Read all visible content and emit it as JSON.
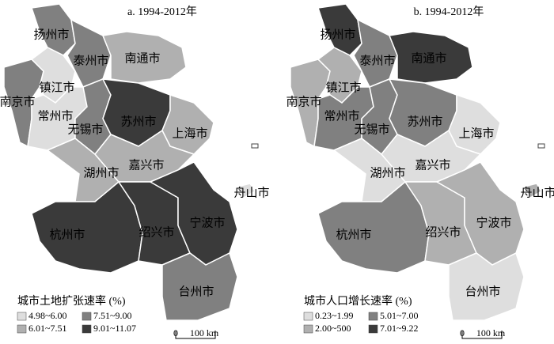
{
  "panels": [
    {
      "title": "a. 1994-2012年",
      "legend_title": "城市土地扩张速率 (%)",
      "legend": [
        {
          "label": "4.98~6.00",
          "color": "#dedede"
        },
        {
          "label": "7.51~9.00",
          "color": "#808080"
        },
        {
          "label": "6.01~7.51",
          "color": "#b0b0b0"
        },
        {
          "label": "9.01~11.07",
          "color": "#3a3a3a"
        }
      ],
      "cities": [
        {
          "name": "扬州市",
          "class": 1
        },
        {
          "name": "泰州市",
          "class": 1
        },
        {
          "name": "南通市",
          "class": 2
        },
        {
          "name": "南京市",
          "class": 1
        },
        {
          "name": "镇江市",
          "class": 0
        },
        {
          "name": "常州市",
          "class": 0
        },
        {
          "name": "无锡市",
          "class": 1
        },
        {
          "name": "苏州市",
          "class": 3
        },
        {
          "name": "上海市",
          "class": 2
        },
        {
          "name": "湖州市",
          "class": 2
        },
        {
          "name": "嘉兴市",
          "class": 2
        },
        {
          "name": "杭州市",
          "class": 3
        },
        {
          "name": "绍兴市",
          "class": 3
        },
        {
          "name": "宁波市",
          "class": 3
        },
        {
          "name": "台州市",
          "class": 1
        },
        {
          "name": "舟山市",
          "class": 0
        }
      ],
      "scale": {
        "zero": "0",
        "label": "100 km"
      }
    },
    {
      "title": "b. 1994-2012年",
      "legend_title": "城市人口增长速率 (%)",
      "legend": [
        {
          "label": "0.23~1.99",
          "color": "#dedede"
        },
        {
          "label": "5.01~7.00",
          "color": "#808080"
        },
        {
          "label": "2.00~500",
          "color": "#b0b0b0"
        },
        {
          "label": "7.01~9.22",
          "color": "#3a3a3a"
        }
      ],
      "cities": [
        {
          "name": "扬州市",
          "class": 3
        },
        {
          "name": "泰州市",
          "class": 1
        },
        {
          "name": "南通市",
          "class": 3
        },
        {
          "name": "南京市",
          "class": 2
        },
        {
          "name": "镇江市",
          "class": 2
        },
        {
          "name": "常州市",
          "class": 1
        },
        {
          "name": "无锡市",
          "class": 1
        },
        {
          "name": "苏州市",
          "class": 1
        },
        {
          "name": "上海市",
          "class": 0
        },
        {
          "name": "湖州市",
          "class": 0
        },
        {
          "name": "嘉兴市",
          "class": 0
        },
        {
          "name": "杭州市",
          "class": 1
        },
        {
          "name": "绍兴市",
          "class": 2
        },
        {
          "name": "宁波市",
          "class": 2
        },
        {
          "name": "台州市",
          "class": 0
        },
        {
          "name": "舟山市",
          "class": 2
        }
      ],
      "scale": {
        "zero": "0",
        "label": "100 km"
      }
    }
  ]
}
